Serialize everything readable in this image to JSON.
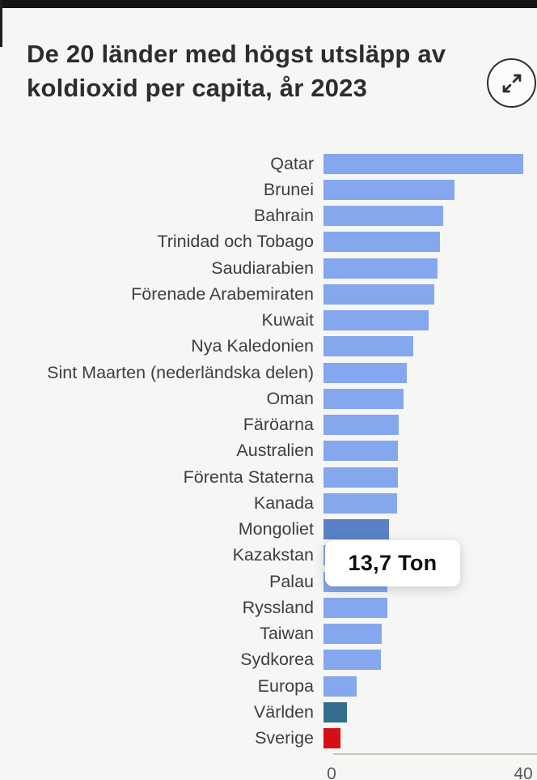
{
  "header": {
    "title_line1": "De 20 länder med högst utsläpp av",
    "title_line2": "koldioxid per capita, år 2023"
  },
  "tooltip": {
    "value_label": "13,7 Ton"
  },
  "axis": {
    "tick_min": "0",
    "tick_max": "40"
  },
  "colors": {
    "top_strip": "#141414",
    "background": "#f6f6f4",
    "bar_default": "#84a7ee",
    "bar_highlight": "#5a80c6",
    "bar_world": "#336f8d",
    "bar_sweden": "#d50f16",
    "tooltip_bg": "#ffffff"
  },
  "chart_data": {
    "type": "bar",
    "orientation": "horizontal",
    "title": "De 20 länder med högst utsläpp av koldioxid per capita, år 2023",
    "unit": "Ton",
    "xlabel": "",
    "ylabel": "",
    "xlim": [
      0,
      40
    ],
    "x_ticks": [
      0,
      40
    ],
    "grid": false,
    "legend": false,
    "categories": [
      "Qatar",
      "Brunei",
      "Bahrain",
      "Trinidad och Tobago",
      "Saudiarabien",
      "Förenade Arabemiraten",
      "Kuwait",
      "Nya Kaledonien",
      "Sint Maarten (nederländska delen)",
      "Oman",
      "Färöarna",
      "Australien",
      "Förenta Staterna",
      "Kanada",
      "Mongoliet",
      "Kazakstan",
      "Palau",
      "Ryssland",
      "Taiwan",
      "Sydkorea",
      "Europa",
      "Världen",
      "Sverige"
    ],
    "values": [
      42.0,
      27.5,
      25.2,
      24.5,
      24.0,
      23.3,
      22.1,
      18.9,
      17.5,
      16.8,
      15.8,
      15.7,
      15.7,
      15.4,
      13.7,
      13.5,
      13.4,
      13.4,
      12.2,
      12.0,
      7.0,
      4.9,
      3.6
    ],
    "bar_styles": [
      "default",
      "default",
      "default",
      "default",
      "default",
      "default",
      "default",
      "default",
      "default",
      "default",
      "default",
      "default",
      "default",
      "default",
      "highlight",
      "default",
      "default",
      "default",
      "default",
      "default",
      "default",
      "world",
      "sweden"
    ],
    "highlighted_category": "Mongoliet",
    "tooltip_value": "13,7 Ton"
  }
}
